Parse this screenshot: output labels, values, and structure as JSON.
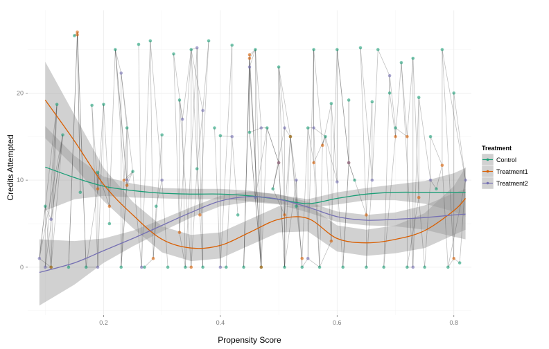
{
  "chart_data": {
    "type": "scatter",
    "xlabel": "Propensity Score",
    "ylabel": "Credits Attempted",
    "xlim": [
      0.07,
      0.83
    ],
    "ylim": [
      -5.5,
      29.5
    ],
    "x_ticks": [
      0.2,
      0.4,
      0.6,
      0.8
    ],
    "x_tick_labels": [
      "0.2",
      "0.4",
      "0.6",
      "0.8"
    ],
    "y_ticks": [
      0,
      10,
      20
    ],
    "y_tick_labels": [
      "0",
      "10",
      "20"
    ],
    "grid": true,
    "legend": {
      "title": "Treatment",
      "position": "right",
      "entries": [
        {
          "name": "Control",
          "color": "#1b9e77"
        },
        {
          "name": "Treatment1",
          "color": "#d95f02"
        },
        {
          "name": "Treatment2",
          "color": "#7570b3"
        }
      ]
    },
    "panel_background": "#ffffff",
    "grid_color": "#ececec",
    "match_line_color": "#333333",
    "ribbon_color": "#999999",
    "series": [
      {
        "name": "Control",
        "color": "#1b9e77",
        "smooth": {
          "x": [
            0.1,
            0.15,
            0.2,
            0.25,
            0.3,
            0.35,
            0.4,
            0.45,
            0.5,
            0.55,
            0.6,
            0.65,
            0.7,
            0.75,
            0.8,
            0.82
          ],
          "y": [
            11.5,
            10.3,
            9.3,
            8.8,
            8.5,
            8.4,
            8.4,
            8.2,
            7.8,
            7.3,
            7.9,
            8.4,
            8.6,
            8.6,
            8.6,
            8.6
          ],
          "lo": [
            6.5,
            7.8,
            8.2,
            8.0,
            7.9,
            7.8,
            7.8,
            7.6,
            7.3,
            6.8,
            7.2,
            7.7,
            7.7,
            7.3,
            6.4,
            5.8
          ],
          "hi": [
            16.2,
            12.8,
            10.4,
            9.6,
            9.1,
            9.0,
            9.0,
            8.8,
            8.3,
            7.8,
            8.6,
            9.1,
            9.5,
            9.9,
            10.8,
            11.4
          ]
        },
        "points": [
          [
            0.1,
            7.0
          ],
          [
            0.11,
            0.0
          ],
          [
            0.12,
            18.7
          ],
          [
            0.13,
            15.2
          ],
          [
            0.14,
            0.0
          ],
          [
            0.15,
            26.6
          ],
          [
            0.16,
            8.6
          ],
          [
            0.17,
            0.0
          ],
          [
            0.18,
            18.6
          ],
          [
            0.19,
            10.9
          ],
          [
            0.2,
            18.7
          ],
          [
            0.21,
            5.0
          ],
          [
            0.22,
            25.0
          ],
          [
            0.23,
            0.0
          ],
          [
            0.24,
            16.0
          ],
          [
            0.25,
            11.0
          ],
          [
            0.26,
            25.6
          ],
          [
            0.27,
            0.0
          ],
          [
            0.28,
            26.0
          ],
          [
            0.29,
            7.0
          ],
          [
            0.3,
            15.2
          ],
          [
            0.31,
            0.0
          ],
          [
            0.32,
            24.5
          ],
          [
            0.33,
            19.2
          ],
          [
            0.34,
            0.0
          ],
          [
            0.35,
            25.0
          ],
          [
            0.36,
            11.3
          ],
          [
            0.37,
            0.0
          ],
          [
            0.38,
            26.0
          ],
          [
            0.39,
            16.0
          ],
          [
            0.4,
            15.1
          ],
          [
            0.41,
            0.0
          ],
          [
            0.42,
            25.5
          ],
          [
            0.43,
            6.0
          ],
          [
            0.44,
            0.0
          ],
          [
            0.45,
            15.5
          ],
          [
            0.46,
            25.0
          ],
          [
            0.47,
            0.0
          ],
          [
            0.48,
            16.0
          ],
          [
            0.49,
            9.0
          ],
          [
            0.5,
            23.0
          ],
          [
            0.51,
            0.0
          ],
          [
            0.52,
            15.0
          ],
          [
            0.53,
            7.0
          ],
          [
            0.54,
            0.0
          ],
          [
            0.55,
            16.0
          ],
          [
            0.56,
            25.0
          ],
          [
            0.57,
            0.0
          ],
          [
            0.58,
            15.0
          ],
          [
            0.59,
            18.8
          ],
          [
            0.6,
            25.0
          ],
          [
            0.61,
            0.0
          ],
          [
            0.62,
            19.2
          ],
          [
            0.63,
            10.0
          ],
          [
            0.64,
            25.2
          ],
          [
            0.65,
            0.0
          ],
          [
            0.66,
            19.0
          ],
          [
            0.67,
            25.0
          ],
          [
            0.68,
            0.0
          ],
          [
            0.69,
            20.0
          ],
          [
            0.7,
            16.0
          ],
          [
            0.71,
            23.5
          ],
          [
            0.72,
            0.0
          ],
          [
            0.73,
            24.0
          ],
          [
            0.74,
            19.5
          ],
          [
            0.75,
            0.0
          ],
          [
            0.76,
            15.0
          ],
          [
            0.77,
            9.0
          ],
          [
            0.78,
            25.0
          ],
          [
            0.79,
            0.0
          ],
          [
            0.8,
            20.0
          ],
          [
            0.81,
            0.5
          ]
        ]
      },
      {
        "name": "Treatment1",
        "color": "#d95f02",
        "smooth": {
          "x": [
            0.1,
            0.15,
            0.2,
            0.25,
            0.3,
            0.35,
            0.4,
            0.45,
            0.5,
            0.55,
            0.6,
            0.65,
            0.7,
            0.75,
            0.8,
            0.82
          ],
          "y": [
            19.2,
            14.5,
            9.5,
            6.0,
            3.2,
            2.2,
            2.5,
            4.0,
            5.5,
            5.6,
            3.3,
            2.8,
            3.2,
            4.2,
            6.5,
            7.9
          ],
          "lo": [
            14.8,
            11.5,
            7.6,
            4.5,
            1.7,
            0.7,
            1.0,
            2.5,
            4.0,
            4.1,
            1.8,
            1.3,
            1.6,
            2.2,
            3.7,
            4.3
          ],
          "hi": [
            23.6,
            17.5,
            11.4,
            7.5,
            4.7,
            3.7,
            4.0,
            5.5,
            7.0,
            7.1,
            4.8,
            4.3,
            4.8,
            6.2,
            9.3,
            11.5
          ]
        },
        "points": [
          [
            0.155,
            27.0
          ],
          [
            0.155,
            26.7
          ],
          [
            0.11,
            0.0
          ],
          [
            0.19,
            9.0
          ],
          [
            0.21,
            7.0
          ],
          [
            0.235,
            10.0
          ],
          [
            0.24,
            9.4
          ],
          [
            0.285,
            1.0
          ],
          [
            0.33,
            4.0
          ],
          [
            0.35,
            0.0
          ],
          [
            0.365,
            6.0
          ],
          [
            0.45,
            24.0
          ],
          [
            0.45,
            24.4
          ],
          [
            0.47,
            0.0
          ],
          [
            0.5,
            12.0
          ],
          [
            0.51,
            6.0
          ],
          [
            0.52,
            15.0
          ],
          [
            0.54,
            1.0
          ],
          [
            0.56,
            12.0
          ],
          [
            0.575,
            14.0
          ],
          [
            0.59,
            3.0
          ],
          [
            0.62,
            12.0
          ],
          [
            0.65,
            6.0
          ],
          [
            0.7,
            15.0
          ],
          [
            0.72,
            15.0
          ],
          [
            0.74,
            8.0
          ],
          [
            0.78,
            11.7
          ],
          [
            0.8,
            1.0
          ]
        ]
      },
      {
        "name": "Treatment2",
        "color": "#7570b3",
        "smooth": {
          "x": [
            0.09,
            0.15,
            0.2,
            0.25,
            0.3,
            0.35,
            0.4,
            0.45,
            0.5,
            0.55,
            0.6,
            0.65,
            0.7,
            0.75,
            0.8,
            0.82
          ],
          "y": [
            -0.6,
            0.5,
            1.9,
            3.3,
            4.8,
            6.3,
            7.6,
            8.1,
            7.8,
            6.9,
            5.8,
            5.4,
            5.5,
            5.7,
            6.0,
            6.1
          ],
          "lo": [
            -4.4,
            -2.0,
            0.5,
            2.4,
            4.1,
            5.7,
            7.0,
            7.5,
            7.2,
            6.3,
            5.2,
            4.8,
            4.7,
            4.3,
            3.5,
            3.2
          ],
          "hi": [
            3.2,
            3.0,
            3.3,
            4.2,
            5.5,
            6.9,
            8.2,
            8.7,
            8.4,
            7.5,
            6.4,
            6.0,
            6.3,
            7.1,
            8.5,
            9.0
          ]
        },
        "points": [
          [
            0.09,
            1.0
          ],
          [
            0.1,
            0.0
          ],
          [
            0.11,
            5.5
          ],
          [
            0.19,
            0.0
          ],
          [
            0.23,
            22.3
          ],
          [
            0.24,
            10.0
          ],
          [
            0.265,
            0.0
          ],
          [
            0.3,
            10.0
          ],
          [
            0.335,
            17.0
          ],
          [
            0.36,
            25.2
          ],
          [
            0.37,
            18.0
          ],
          [
            0.4,
            0.0
          ],
          [
            0.42,
            15.0
          ],
          [
            0.45,
            23.0
          ],
          [
            0.46,
            8.0
          ],
          [
            0.47,
            16.0
          ],
          [
            0.5,
            12.0
          ],
          [
            0.51,
            16.0
          ],
          [
            0.53,
            10.0
          ],
          [
            0.55,
            1.0
          ],
          [
            0.56,
            16.0
          ],
          [
            0.6,
            9.8
          ],
          [
            0.62,
            12.0
          ],
          [
            0.66,
            10.0
          ],
          [
            0.69,
            22.0
          ],
          [
            0.73,
            0.0
          ],
          [
            0.76,
            10.0
          ],
          [
            0.82,
            10.0
          ]
        ]
      }
    ]
  }
}
